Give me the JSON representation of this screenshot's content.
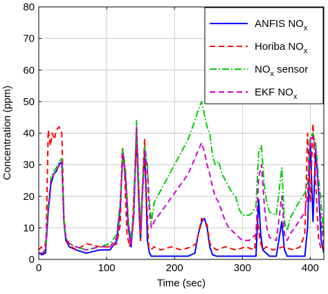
{
  "chart_data": {
    "type": "line",
    "title": "",
    "xlabel": "Time (sec)",
    "ylabel": "Concentration (ppm)",
    "xlim": [
      0,
      420
    ],
    "ylim": [
      0,
      80
    ],
    "xticks": [
      0,
      100,
      200,
      300,
      400
    ],
    "yticks": [
      0,
      10,
      20,
      30,
      40,
      50,
      60,
      70,
      80
    ],
    "grid": true,
    "legend_position": "top-right",
    "series": [
      {
        "name": "ANFIS NO",
        "name_subscript": "x",
        "color": "#0000ff",
        "dash": "solid",
        "x": [
          0,
          5,
          10,
          14,
          18,
          22,
          26,
          30,
          34,
          37,
          40,
          45,
          55,
          70,
          90,
          105,
          115,
          120,
          124,
          128,
          132,
          136,
          140,
          144,
          148,
          150,
          153,
          156,
          158,
          160,
          163,
          166,
          170,
          180,
          200,
          220,
          230,
          235,
          240,
          244,
          248,
          252,
          256,
          262,
          280,
          300,
          315,
          320,
          324,
          327,
          330,
          335,
          340,
          350,
          358,
          362,
          366,
          370,
          380,
          392,
          396,
          400,
          404,
          408,
          412,
          416,
          420
        ],
        "y": [
          2,
          1.5,
          2,
          15,
          24,
          27,
          28,
          30,
          31,
          12,
          6,
          4,
          3,
          2,
          3,
          3,
          6,
          16,
          34,
          25,
          10,
          4,
          14,
          40,
          14,
          6,
          22,
          34,
          22,
          6,
          2,
          1,
          1,
          1,
          1,
          1,
          2,
          8,
          12,
          13,
          10,
          4,
          1.5,
          1,
          1,
          1,
          1,
          1,
          19,
          8,
          3,
          2,
          1,
          1,
          12,
          3,
          1,
          1,
          1,
          1,
          10,
          38,
          12,
          35,
          22,
          6,
          2
        ]
      },
      {
        "name": "Horiba NO",
        "name_subscript": "x",
        "color": "#ff0000",
        "dash": "8,5",
        "x": [
          0,
          4,
          8,
          11,
          14,
          17,
          20,
          23,
          26,
          30,
          34,
          37,
          40,
          43,
          48,
          56,
          70,
          90,
          105,
          115,
          120,
          123,
          126,
          130,
          134,
          138,
          141,
          144,
          147,
          150,
          153,
          156,
          159,
          162,
          165,
          170,
          180,
          195,
          210,
          225,
          232,
          236,
          240,
          244,
          248,
          252,
          256,
          262,
          275,
          290,
          305,
          318,
          322,
          326,
          330,
          335,
          345,
          360,
          375,
          385,
          392,
          396,
          400,
          404,
          408,
          412,
          416,
          420
        ],
        "y": [
          3,
          4,
          2,
          8,
          41,
          36,
          40,
          38,
          41,
          42,
          40,
          14,
          7,
          5,
          4,
          3,
          5,
          4,
          4,
          5,
          11,
          35,
          30,
          8,
          4,
          10,
          25,
          41,
          22,
          6,
          25,
          38,
          18,
          4,
          3,
          4,
          3,
          4,
          3,
          4,
          5,
          9,
          13,
          12,
          11,
          5,
          4,
          3,
          4,
          3,
          4,
          3,
          13,
          6,
          3,
          4,
          3,
          4,
          3,
          4,
          8,
          40,
          18,
          43,
          24,
          7,
          3,
          4
        ]
      },
      {
        "name": "NO",
        "name_subscript": "x",
        "name_suffix": " sensor",
        "color": "#00cc00",
        "dash": "10,3,2,3",
        "x": [
          0,
          5,
          10,
          14,
          18,
          22,
          26,
          30,
          34,
          37,
          40,
          45,
          55,
          70,
          90,
          105,
          115,
          120,
          124,
          128,
          132,
          136,
          140,
          144,
          148,
          150,
          153,
          156,
          160,
          163,
          166,
          170,
          180,
          190,
          200,
          210,
          220,
          230,
          236,
          240,
          244,
          248,
          252,
          256,
          260,
          265,
          270,
          275,
          280,
          285,
          290,
          295,
          300,
          310,
          315,
          320,
          324,
          328,
          332,
          336,
          340,
          350,
          358,
          362,
          366,
          370,
          380,
          392,
          396,
          400,
          404,
          408,
          412,
          416,
          420
        ],
        "y": [
          2,
          2,
          3,
          17,
          26,
          28,
          29,
          31,
          32,
          13,
          7,
          5,
          4,
          3,
          4,
          5,
          8,
          18,
          35,
          28,
          12,
          6,
          16,
          44,
          20,
          10,
          24,
          36,
          30,
          18,
          12,
          18,
          22,
          26,
          30,
          34,
          38,
          44,
          48,
          50,
          46,
          42,
          40,
          33,
          30,
          31,
          27,
          25,
          23,
          21,
          20,
          16,
          14,
          14,
          15,
          17,
          34,
          36,
          24,
          18,
          15,
          14,
          29,
          12,
          9,
          13,
          17,
          21,
          24,
          39,
          40,
          37,
          26,
          18,
          7
        ]
      },
      {
        "name": "EKF NO",
        "name_subscript": "x",
        "color": "#cc00cc",
        "dash": "8,5",
        "x": [
          0,
          5,
          10,
          14,
          18,
          22,
          26,
          30,
          34,
          37,
          40,
          45,
          55,
          70,
          90,
          105,
          115,
          120,
          124,
          128,
          132,
          136,
          140,
          144,
          148,
          150,
          153,
          156,
          160,
          163,
          166,
          170,
          180,
          190,
          200,
          210,
          220,
          230,
          236,
          240,
          244,
          248,
          252,
          256,
          260,
          265,
          270,
          275,
          280,
          285,
          290,
          295,
          300,
          310,
          315,
          320,
          324,
          328,
          332,
          336,
          340,
          350,
          358,
          362,
          366,
          370,
          380,
          392,
          396,
          400,
          404,
          408,
          412,
          416,
          420
        ],
        "y": [
          2,
          2,
          3,
          16,
          25,
          27,
          28,
          30,
          31,
          12,
          7,
          5,
          4,
          3,
          4,
          4,
          7,
          17,
          34,
          26,
          11,
          5,
          15,
          42,
          18,
          9,
          22,
          35,
          28,
          15,
          10,
          12,
          15,
          18,
          21,
          24,
          27,
          32,
          35,
          37,
          34,
          30,
          27,
          23,
          20,
          18,
          15,
          12,
          10,
          9,
          8,
          7,
          6,
          6,
          7,
          8,
          26,
          30,
          18,
          10,
          7,
          6,
          20,
          8,
          6,
          8,
          11,
          15,
          20,
          38,
          39,
          35,
          22,
          12,
          4
        ]
      }
    ]
  }
}
